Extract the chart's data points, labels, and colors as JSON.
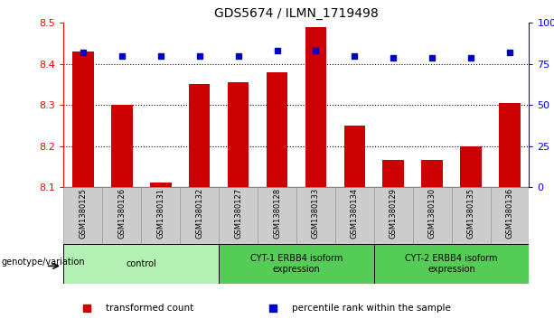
{
  "title": "GDS5674 / ILMN_1719498",
  "samples": [
    "GSM1380125",
    "GSM1380126",
    "GSM1380131",
    "GSM1380132",
    "GSM1380127",
    "GSM1380128",
    "GSM1380133",
    "GSM1380134",
    "GSM1380129",
    "GSM1380130",
    "GSM1380135",
    "GSM1380136"
  ],
  "red_values": [
    8.43,
    8.3,
    8.11,
    8.35,
    8.355,
    8.38,
    8.49,
    8.25,
    8.165,
    8.165,
    8.2,
    8.305
  ],
  "blue_values": [
    82,
    80,
    80,
    80,
    80,
    83,
    83,
    80,
    79,
    79,
    79,
    82
  ],
  "groups": [
    {
      "label": "control",
      "start": 0,
      "end": 3,
      "color": "#b3f0b3"
    },
    {
      "label": "CYT-1 ERBB4 isoform\nexpression",
      "start": 4,
      "end": 7,
      "color": "#55cc55"
    },
    {
      "label": "CYT-2 ERBB4 isoform\nexpression",
      "start": 8,
      "end": 11,
      "color": "#55cc55"
    }
  ],
  "ylim_left": [
    8.1,
    8.5
  ],
  "ylim_right": [
    0,
    100
  ],
  "yticks_left": [
    8.1,
    8.2,
    8.3,
    8.4,
    8.5
  ],
  "yticks_right": [
    0,
    25,
    50,
    75,
    100
  ],
  "grid_lines": [
    8.2,
    8.3,
    8.4
  ],
  "bar_color": "#cc0000",
  "dot_color": "#0000cc",
  "bar_bottom": 8.1,
  "bar_width": 0.55,
  "genotype_label": "genotype/variation",
  "legend_items": [
    {
      "color": "#cc0000",
      "label": "transformed count"
    },
    {
      "color": "#0000cc",
      "label": "percentile rank within the sample"
    }
  ],
  "sample_bg_color": "#cccccc",
  "sample_border_color": "#999999"
}
